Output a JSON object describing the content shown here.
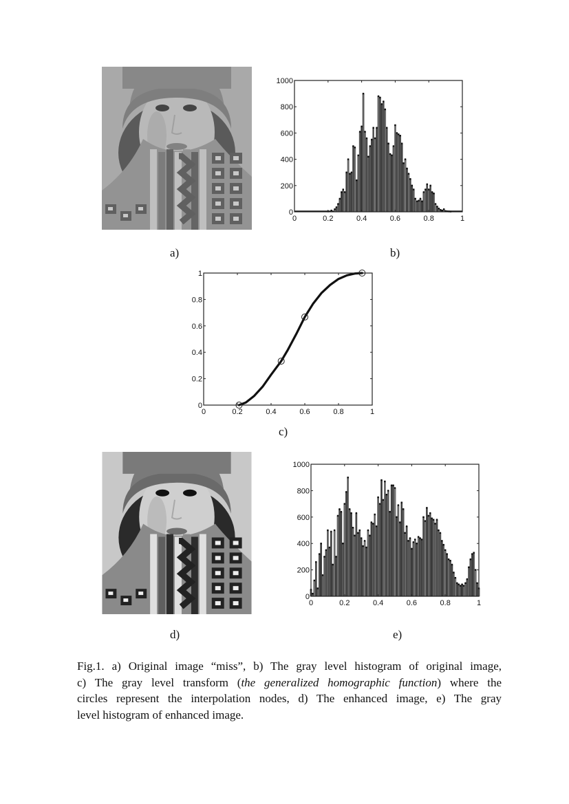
{
  "figure": {
    "panels": {
      "a": {
        "label": "a)",
        "description": "Original image “miss” (grayscale photo of woman in knit hat and patterned scarf)",
        "tone": "low-contrast"
      },
      "b": {
        "label": "b)"
      },
      "c": {
        "label": "c)"
      },
      "d": {
        "label": "d)",
        "description": "Enhanced image (grayscale photo, higher contrast)",
        "tone": "high-contrast"
      },
      "e": {
        "label": "e)"
      }
    },
    "caption": {
      "lines": [
        [
          {
            "t": "Fig.1.  a) Original image “miss”, b) The gray level histogram of original image,"
          }
        ],
        [
          {
            "t": "c) The gray level transform ("
          },
          {
            "t": "the generalized homographic function",
            "i": true
          },
          {
            "t": ") where the"
          }
        ],
        [
          {
            "t": "circles represent the interpolation nodes, d) The enhanced image, e) The gray"
          }
        ],
        [
          {
            "t": "level histogram of enhanced image."
          }
        ]
      ]
    }
  },
  "chart_data": [
    {
      "id": "b",
      "type": "bar",
      "title": "",
      "xlabel": "",
      "ylabel": "",
      "xlim": [
        0,
        1
      ],
      "ylim": [
        0,
        1000
      ],
      "xticks": [
        "0",
        "0.2",
        "0.4",
        "0.6",
        "0.8",
        "1"
      ],
      "yticks": [
        "0",
        "200",
        "400",
        "600",
        "800",
        "1000"
      ],
      "grid": false,
      "style": "stem-histogram",
      "x": [
        0.2,
        0.22,
        0.24,
        0.25,
        0.26,
        0.27,
        0.28,
        0.29,
        0.3,
        0.31,
        0.32,
        0.33,
        0.34,
        0.35,
        0.36,
        0.37,
        0.38,
        0.39,
        0.4,
        0.41,
        0.42,
        0.43,
        0.44,
        0.45,
        0.46,
        0.47,
        0.48,
        0.49,
        0.5,
        0.51,
        0.52,
        0.53,
        0.54,
        0.55,
        0.56,
        0.57,
        0.58,
        0.59,
        0.6,
        0.61,
        0.62,
        0.63,
        0.64,
        0.65,
        0.66,
        0.67,
        0.68,
        0.69,
        0.7,
        0.71,
        0.72,
        0.73,
        0.74,
        0.75,
        0.76,
        0.77,
        0.78,
        0.79,
        0.8,
        0.81,
        0.82,
        0.83,
        0.84,
        0.85,
        0.86,
        0.87,
        0.88,
        0.89,
        0.9,
        0.91,
        0.92,
        0.93
      ],
      "values": [
        3,
        10,
        20,
        35,
        60,
        100,
        150,
        170,
        150,
        300,
        400,
        290,
        300,
        500,
        490,
        240,
        430,
        610,
        650,
        900,
        610,
        560,
        420,
        500,
        550,
        640,
        560,
        640,
        880,
        870,
        820,
        840,
        780,
        640,
        520,
        440,
        430,
        500,
        660,
        600,
        590,
        580,
        520,
        370,
        400,
        330,
        290,
        250,
        200,
        170,
        100,
        80,
        85,
        100,
        80,
        150,
        170,
        210,
        170,
        200,
        150,
        140,
        60,
        40,
        25,
        15,
        10,
        20,
        6,
        4,
        3,
        2
      ]
    },
    {
      "id": "c",
      "type": "line",
      "title": "",
      "xlabel": "",
      "ylabel": "",
      "xlim": [
        0,
        1
      ],
      "ylim": [
        0,
        1
      ],
      "xticks": [
        "0",
        "0.2",
        "0.4",
        "0.6",
        "0.8",
        "1"
      ],
      "yticks": [
        "0",
        "0.2",
        "0.4",
        "0.6",
        "0.8",
        "1"
      ],
      "grid": false,
      "series": [
        {
          "name": "gray level transform",
          "x": [
            0.21,
            0.25,
            0.3,
            0.35,
            0.4,
            0.46,
            0.5,
            0.55,
            0.6,
            0.65,
            0.7,
            0.75,
            0.8,
            0.85,
            0.9,
            0.94
          ],
          "values": [
            0.0,
            0.02,
            0.07,
            0.14,
            0.23,
            0.333,
            0.42,
            0.54,
            0.667,
            0.77,
            0.85,
            0.91,
            0.955,
            0.983,
            0.997,
            1.0
          ]
        },
        {
          "name": "interpolation nodes",
          "marker": "circle",
          "x": [
            0.21,
            0.46,
            0.6,
            0.94
          ],
          "values": [
            0.0,
            0.333,
            0.667,
            1.0
          ]
        }
      ]
    },
    {
      "id": "e",
      "type": "bar",
      "title": "",
      "xlabel": "",
      "ylabel": "",
      "xlim": [
        0,
        1
      ],
      "ylim": [
        0,
        1000
      ],
      "xticks": [
        "0",
        "0.2",
        "0.4",
        "0.6",
        "0.8",
        "1"
      ],
      "yticks": [
        "0",
        "200",
        "400",
        "600",
        "800",
        "1000"
      ],
      "grid": false,
      "style": "stem-histogram",
      "x": [
        0.0,
        0.01,
        0.02,
        0.03,
        0.04,
        0.05,
        0.06,
        0.07,
        0.08,
        0.09,
        0.1,
        0.11,
        0.12,
        0.13,
        0.14,
        0.15,
        0.16,
        0.17,
        0.18,
        0.19,
        0.2,
        0.21,
        0.22,
        0.23,
        0.24,
        0.25,
        0.26,
        0.27,
        0.28,
        0.29,
        0.3,
        0.31,
        0.32,
        0.33,
        0.34,
        0.35,
        0.36,
        0.37,
        0.38,
        0.39,
        0.4,
        0.41,
        0.42,
        0.43,
        0.44,
        0.45,
        0.46,
        0.47,
        0.48,
        0.49,
        0.5,
        0.51,
        0.52,
        0.53,
        0.54,
        0.55,
        0.56,
        0.57,
        0.58,
        0.59,
        0.6,
        0.61,
        0.62,
        0.63,
        0.64,
        0.65,
        0.66,
        0.67,
        0.68,
        0.69,
        0.7,
        0.71,
        0.72,
        0.73,
        0.74,
        0.75,
        0.76,
        0.77,
        0.78,
        0.79,
        0.8,
        0.81,
        0.82,
        0.83,
        0.84,
        0.85,
        0.86,
        0.87,
        0.88,
        0.89,
        0.9,
        0.91,
        0.92,
        0.93,
        0.94,
        0.95,
        0.96,
        0.97,
        0.98,
        0.99,
        1.0
      ],
      "values": [
        50,
        20,
        120,
        260,
        60,
        320,
        400,
        160,
        300,
        350,
        500,
        370,
        490,
        240,
        500,
        300,
        610,
        660,
        640,
        400,
        700,
        790,
        900,
        660,
        630,
        520,
        460,
        630,
        480,
        500,
        440,
        380,
        420,
        370,
        500,
        460,
        560,
        550,
        620,
        530,
        750,
        700,
        880,
        730,
        870,
        770,
        800,
        640,
        840,
        840,
        820,
        600,
        690,
        560,
        710,
        660,
        480,
        530,
        420,
        440,
        360,
        410,
        430,
        400,
        450,
        440,
        430,
        600,
        570,
        670,
        610,
        630,
        590,
        580,
        550,
        580,
        500,
        480,
        420,
        390,
        350,
        320,
        280,
        270,
        240,
        180,
        140,
        100,
        90,
        80,
        90,
        80,
        100,
        130,
        220,
        280,
        320,
        330,
        200,
        100,
        60
      ]
    }
  ]
}
